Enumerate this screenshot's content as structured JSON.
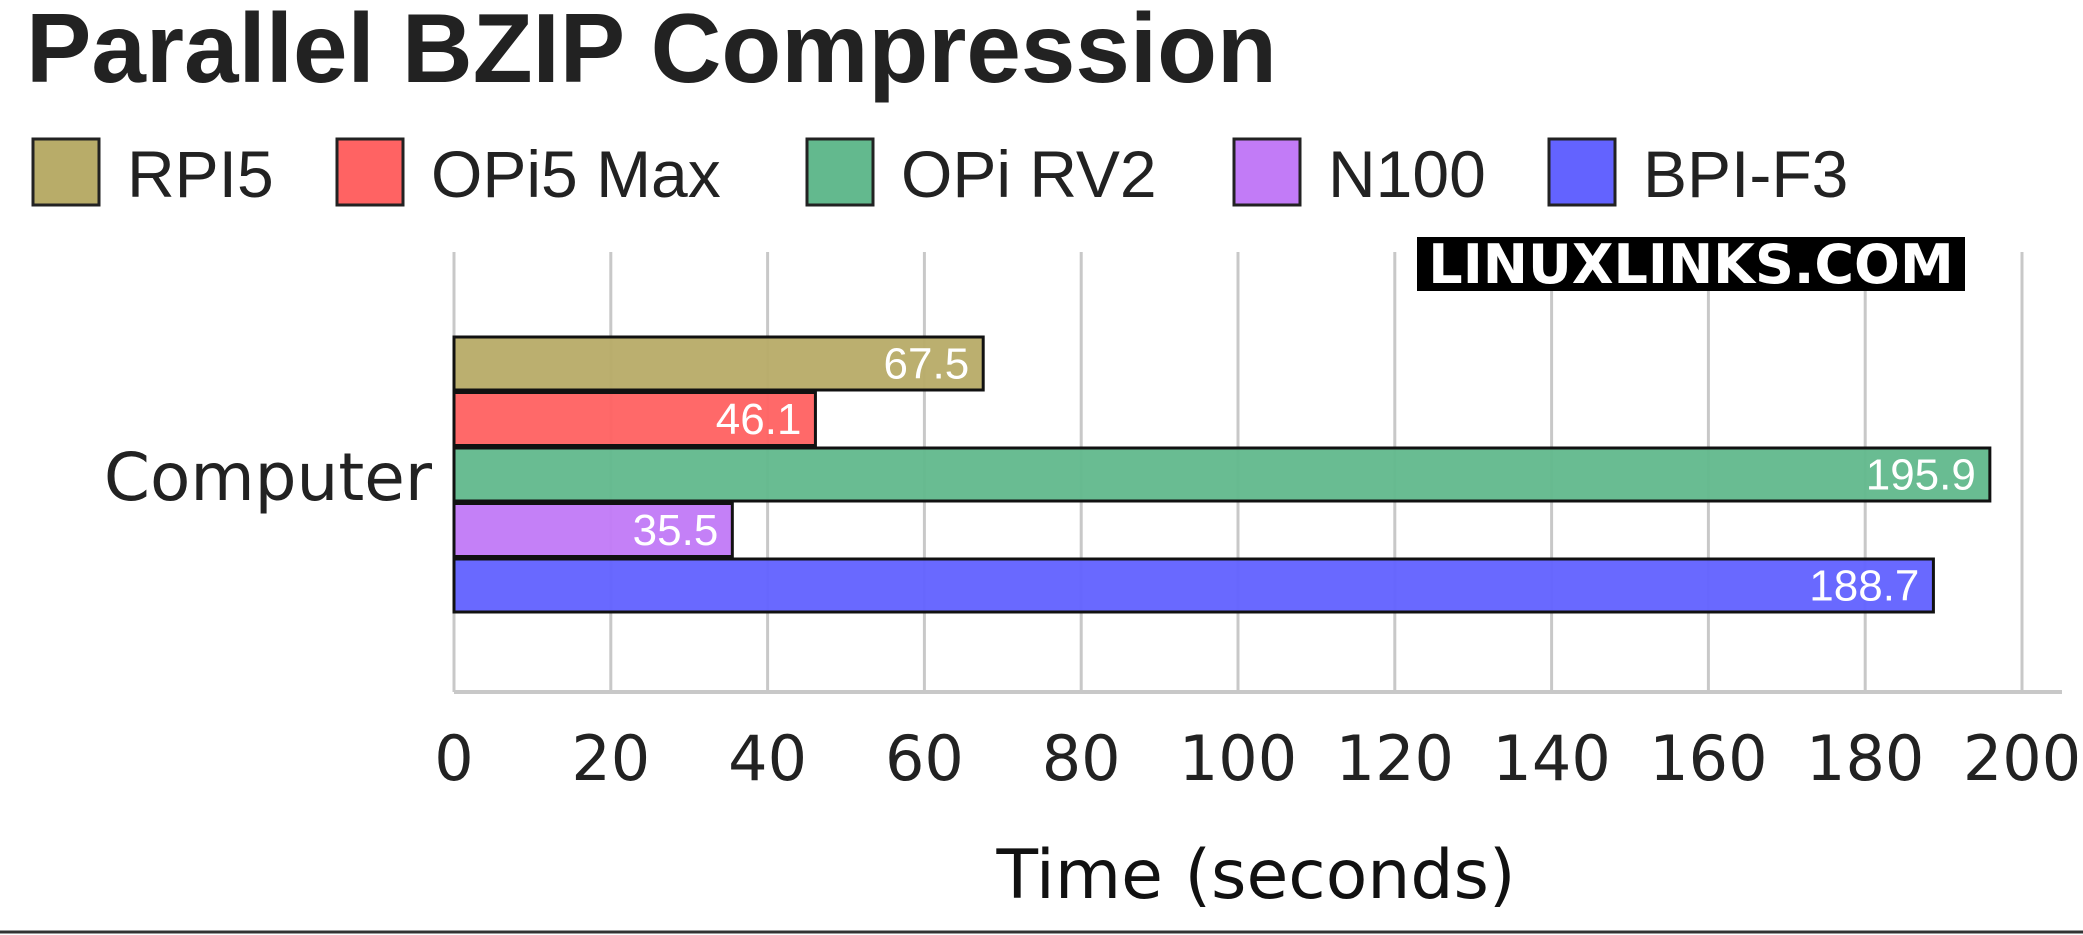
{
  "chart_data": {
    "type": "bar",
    "orientation": "horizontal",
    "title": "Parallel BZIP Compression",
    "categories": [
      "Computer"
    ],
    "series": [
      {
        "name": "RPI5",
        "values": [
          67.5
        ],
        "color": "#b8ac69"
      },
      {
        "name": "OPi5 Max",
        "values": [
          46.1
        ],
        "color": "#ff6363"
      },
      {
        "name": "OPi RV2",
        "values": [
          195.9
        ],
        "color": "#63b98e"
      },
      {
        "name": "N100",
        "values": [
          35.5
        ],
        "color": "#c27bf7"
      },
      {
        "name": "BPI-F3",
        "values": [
          188.7
        ],
        "color": "#6363ff"
      }
    ],
    "xlabel": "Time (seconds)",
    "ylabel": "",
    "xlim": [
      0,
      200
    ],
    "xticks": [
      0,
      20,
      40,
      60,
      80,
      100,
      120,
      140,
      160,
      180,
      200
    ],
    "grid": true,
    "legend_position": "top",
    "data_labels": [
      "67.5",
      "46.1",
      "195.9",
      "35.5",
      "188.7"
    ]
  },
  "watermark": "LINUXLINKS.COM"
}
